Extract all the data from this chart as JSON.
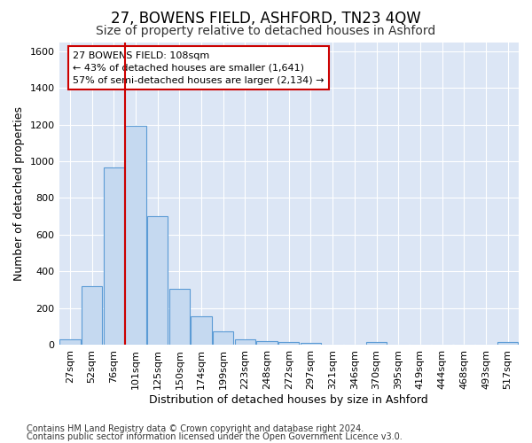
{
  "title": "27, BOWENS FIELD, ASHFORD, TN23 4QW",
  "subtitle": "Size of property relative to detached houses in Ashford",
  "xlabel": "Distribution of detached houses by size in Ashford",
  "ylabel": "Number of detached properties",
  "footnote1": "Contains HM Land Registry data © Crown copyright and database right 2024.",
  "footnote2": "Contains public sector information licensed under the Open Government Licence v3.0.",
  "categories": [
    "27sqm",
    "52sqm",
    "76sqm",
    "101sqm",
    "125sqm",
    "150sqm",
    "174sqm",
    "199sqm",
    "223sqm",
    "248sqm",
    "272sqm",
    "297sqm",
    "321sqm",
    "346sqm",
    "370sqm",
    "395sqm",
    "419sqm",
    "444sqm",
    "468sqm",
    "493sqm",
    "517sqm"
  ],
  "values": [
    30,
    320,
    965,
    1195,
    700,
    305,
    155,
    70,
    30,
    20,
    15,
    10,
    0,
    0,
    12,
    0,
    0,
    0,
    0,
    0,
    12
  ],
  "bar_color": "#c5d9f0",
  "bar_edge_color": "#5b9bd5",
  "vline_color": "#cc0000",
  "annotation_text": "27 BOWENS FIELD: 108sqm\n← 43% of detached houses are smaller (1,641)\n57% of semi-detached houses are larger (2,134) →",
  "annotation_box_color": "#cc0000",
  "ylim": [
    0,
    1650
  ],
  "yticks": [
    0,
    200,
    400,
    600,
    800,
    1000,
    1200,
    1400,
    1600
  ],
  "bg_color": "#ffffff",
  "plot_bg_color": "#dce6f5",
  "grid_color": "#ffffff",
  "title_fontsize": 12,
  "subtitle_fontsize": 10,
  "axis_label_fontsize": 9,
  "tick_fontsize": 8,
  "annotation_fontsize": 8,
  "footnote_fontsize": 7
}
